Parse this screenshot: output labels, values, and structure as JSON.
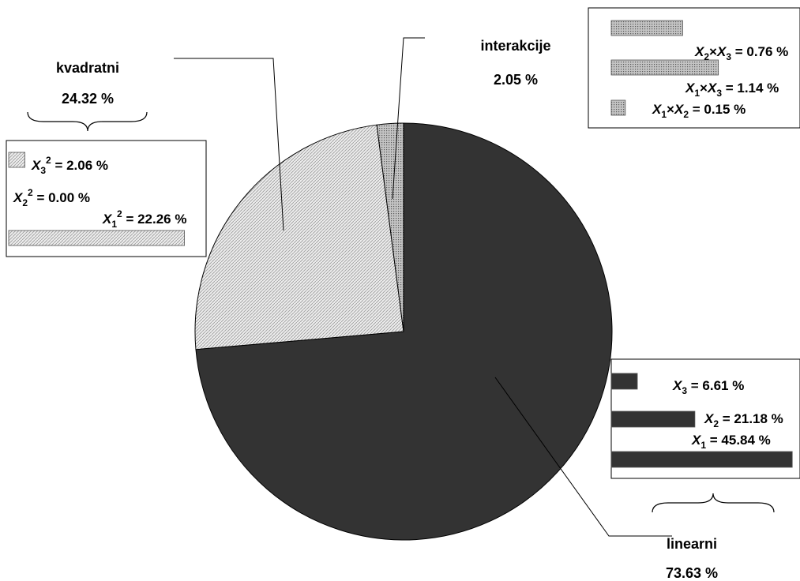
{
  "chart_data": {
    "type": "pie",
    "categories": [
      "linearni",
      "kvadratni",
      "interakcije"
    ],
    "values": [
      73.63,
      24.32,
      2.05
    ],
    "value_labels": [
      "73.63 %",
      "24.32 %",
      "2.05 %"
    ],
    "colors": {
      "linearni": "#333333",
      "kvadratni": "#e6e6e6",
      "interakcije": "#a6a6a6"
    },
    "breakdown": {
      "kvadratni": {
        "type": "bar",
        "items": [
          {
            "var": "X",
            "sub": "3",
            "sup": "2",
            "rest": " = 2.06 %",
            "value": 2.06
          },
          {
            "var": "X",
            "sub": "2",
            "sup": "2",
            "rest": " = 0.00 %",
            "value": 0.0
          },
          {
            "var": "X",
            "sub": "1",
            "sup": "2",
            "rest": " = 22.26 %",
            "value": 22.26
          }
        ]
      },
      "interakcije": {
        "type": "bar",
        "items": [
          {
            "a": "X",
            "asub": "2",
            "b": "X",
            "bsub": "3",
            "rest": " = 0.76 %",
            "value": 0.76
          },
          {
            "a": "X",
            "asub": "1",
            "b": "X",
            "bsub": "3",
            "rest": " = 1.14 %",
            "value": 1.14
          },
          {
            "a": "X",
            "asub": "1",
            "b": "X",
            "bsub": "2",
            "rest": " = 0.15 %",
            "value": 0.15
          }
        ]
      },
      "linearni": {
        "type": "bar",
        "items": [
          {
            "var": "X",
            "sub": "3",
            "rest": " = 6.61 %",
            "value": 6.61
          },
          {
            "var": "X",
            "sub": "2",
            "rest": " = 21.18 %",
            "value": 21.18
          },
          {
            "var": "X",
            "sub": "1",
            "rest": " = 45.84 %",
            "value": 45.84
          }
        ]
      }
    }
  }
}
